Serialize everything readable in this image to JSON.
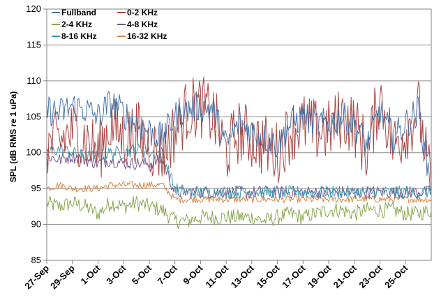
{
  "chart_data": {
    "type": "line",
    "title": "",
    "xlabel": "",
    "ylabel": "SPL (dB RMS re 1 uPa)",
    "ylim": [
      85,
      120
    ],
    "yticks": [
      85,
      90,
      95,
      100,
      105,
      110,
      115,
      120
    ],
    "xlim": [
      "2012-09-27",
      "2012-10-27"
    ],
    "xtick_labels": [
      "27-Sep",
      "29-Sep",
      "1-Oct",
      "3-Oct",
      "5-Oct",
      "7-Oct",
      "9-Oct",
      "11-Oct",
      "13-Oct",
      "15-Oct",
      "17-Oct",
      "19-Oct",
      "21-Oct",
      "23-Oct",
      "25-Oct"
    ],
    "xtick_dates": [
      "2012-09-27",
      "2012-09-29",
      "2012-10-01",
      "2012-10-03",
      "2012-10-05",
      "2012-10-07",
      "2012-10-09",
      "2012-10-11",
      "2012-10-13",
      "2012-10-15",
      "2012-10-17",
      "2012-10-19",
      "2012-10-21",
      "2012-10-23",
      "2012-10-25"
    ],
    "grid": true,
    "legend": "top-left",
    "series": [
      {
        "name": "Fullband",
        "color": "#4572a7",
        "x": [
          "2012-09-27",
          "2012-09-28",
          "2012-09-29",
          "2012-09-30",
          "2012-10-01",
          "2012-10-02",
          "2012-10-03",
          "2012-10-04",
          "2012-10-05",
          "2012-10-06",
          "2012-10-07",
          "2012-10-08",
          "2012-10-09",
          "2012-10-10",
          "2012-10-11",
          "2012-10-12",
          "2012-10-13",
          "2012-10-14",
          "2012-10-15",
          "2012-10-16",
          "2012-10-17",
          "2012-10-18",
          "2012-10-19",
          "2012-10-20",
          "2012-10-21",
          "2012-10-22",
          "2012-10-23",
          "2012-10-24",
          "2012-10-25",
          "2012-10-26",
          "2012-10-27"
        ],
        "values": [
          106,
          105.5,
          106.5,
          106,
          105,
          107,
          105.5,
          104,
          103,
          102,
          105,
          106,
          106.5,
          106,
          101,
          104,
          103,
          102,
          101,
          104,
          105,
          104,
          104,
          105,
          104,
          101,
          106,
          102,
          104,
          106,
          95
        ]
      },
      {
        "name": "0-2 KHz",
        "color": "#aa4643",
        "x": [
          "2012-09-27",
          "2012-09-28",
          "2012-09-29",
          "2012-09-30",
          "2012-10-01",
          "2012-10-02",
          "2012-10-03",
          "2012-10-04",
          "2012-10-05",
          "2012-10-06",
          "2012-10-07",
          "2012-10-08",
          "2012-10-09",
          "2012-10-10",
          "2012-10-11",
          "2012-10-12",
          "2012-10-13",
          "2012-10-14",
          "2012-10-15",
          "2012-10-16",
          "2012-10-17",
          "2012-10-18",
          "2012-10-19",
          "2012-10-20",
          "2012-10-21",
          "2012-10-22",
          "2012-10-23",
          "2012-10-24",
          "2012-10-25",
          "2012-10-26",
          "2012-10-27"
        ],
        "values": [
          101,
          101.5,
          103,
          102,
          100,
          104,
          102,
          103,
          101,
          100,
          103,
          106,
          106.5,
          105,
          100,
          103,
          102,
          101,
          100,
          103,
          104,
          103,
          103,
          105,
          104,
          100,
          108,
          101,
          103,
          106,
          95
        ]
      },
      {
        "name": "2-4 KHz",
        "color": "#89a54e",
        "x": [
          "2012-09-27",
          "2012-09-28",
          "2012-09-29",
          "2012-09-30",
          "2012-10-01",
          "2012-10-02",
          "2012-10-03",
          "2012-10-04",
          "2012-10-05",
          "2012-10-06",
          "2012-10-07",
          "2012-10-08",
          "2012-10-09",
          "2012-10-10",
          "2012-10-11",
          "2012-10-12",
          "2012-10-13",
          "2012-10-14",
          "2012-10-15",
          "2012-10-16",
          "2012-10-17",
          "2012-10-18",
          "2012-10-19",
          "2012-10-20",
          "2012-10-21",
          "2012-10-22",
          "2012-10-23",
          "2012-10-24",
          "2012-10-25",
          "2012-10-26",
          "2012-10-27"
        ],
        "values": [
          93,
          92.5,
          93,
          92.5,
          91.5,
          93,
          92.5,
          93,
          92.5,
          92,
          90.5,
          90.5,
          91,
          91,
          91,
          91,
          91,
          90.5,
          91,
          91.5,
          91,
          91.5,
          92,
          92,
          91.5,
          92,
          92,
          92,
          91.5,
          91.5,
          92
        ]
      },
      {
        "name": "4-8 KHz",
        "color": "#71588f",
        "x": [
          "2012-09-27",
          "2012-09-28",
          "2012-09-29",
          "2012-09-30",
          "2012-10-01",
          "2012-10-02",
          "2012-10-03",
          "2012-10-04",
          "2012-10-05",
          "2012-10-06",
          "2012-10-07",
          "2012-10-08",
          "2012-10-09",
          "2012-10-10",
          "2012-10-11",
          "2012-10-12",
          "2012-10-13",
          "2012-10-14",
          "2012-10-15",
          "2012-10-16",
          "2012-10-17",
          "2012-10-18",
          "2012-10-19",
          "2012-10-20",
          "2012-10-21",
          "2012-10-22",
          "2012-10-23",
          "2012-10-24",
          "2012-10-25",
          "2012-10-26",
          "2012-10-27"
        ],
        "values": [
          99.5,
          99,
          99.5,
          99,
          98.5,
          99,
          98.5,
          98.5,
          98.5,
          99,
          94.5,
          94.5,
          94.5,
          94.5,
          94.5,
          94.5,
          94.5,
          94.5,
          94.5,
          94.5,
          94.5,
          94.5,
          94.5,
          94.5,
          94.5,
          94.5,
          94.5,
          94.5,
          94.5,
          94.5,
          94.5
        ]
      },
      {
        "name": "8-16 KHz",
        "color": "#4198af",
        "x": [
          "2012-09-27",
          "2012-09-28",
          "2012-09-29",
          "2012-09-30",
          "2012-10-01",
          "2012-10-02",
          "2012-10-03",
          "2012-10-04",
          "2012-10-05",
          "2012-10-06",
          "2012-10-07",
          "2012-10-08",
          "2012-10-09",
          "2012-10-10",
          "2012-10-11",
          "2012-10-12",
          "2012-10-13",
          "2012-10-14",
          "2012-10-15",
          "2012-10-16",
          "2012-10-17",
          "2012-10-18",
          "2012-10-19",
          "2012-10-20",
          "2012-10-21",
          "2012-10-22",
          "2012-10-23",
          "2012-10-24",
          "2012-10-25",
          "2012-10-26",
          "2012-10-27"
        ],
        "values": [
          100,
          100.5,
          100,
          99.5,
          99.5,
          100,
          100,
          100.5,
          100,
          100,
          95,
          94.5,
          94.5,
          94.5,
          94.5,
          94.5,
          94.5,
          94.5,
          94.5,
          94.5,
          94.5,
          94.5,
          94.5,
          94.5,
          94.5,
          94.5,
          94.5,
          94.5,
          94.5,
          94.5,
          94.5
        ]
      },
      {
        "name": "16-32 KHz",
        "color": "#db843d",
        "x": [
          "2012-09-27",
          "2012-09-28",
          "2012-09-29",
          "2012-09-30",
          "2012-10-01",
          "2012-10-02",
          "2012-10-03",
          "2012-10-04",
          "2012-10-05",
          "2012-10-06",
          "2012-10-07",
          "2012-10-08",
          "2012-10-09",
          "2012-10-10",
          "2012-10-11",
          "2012-10-12",
          "2012-10-13",
          "2012-10-14",
          "2012-10-15",
          "2012-10-16",
          "2012-10-17",
          "2012-10-18",
          "2012-10-19",
          "2012-10-20",
          "2012-10-21",
          "2012-10-22",
          "2012-10-23",
          "2012-10-24",
          "2012-10-25",
          "2012-10-26",
          "2012-10-27"
        ],
        "values": [
          95,
          95.5,
          95,
          95,
          95,
          95.5,
          95.5,
          95.5,
          95.5,
          95.5,
          93.5,
          93.5,
          93.5,
          93.5,
          93.5,
          93.5,
          93.5,
          93.5,
          93.5,
          93.5,
          93.5,
          93.5,
          93.5,
          93.5,
          93.5,
          93.5,
          93.5,
          93.5,
          93.5,
          93.5,
          93.5
        ]
      }
    ]
  }
}
